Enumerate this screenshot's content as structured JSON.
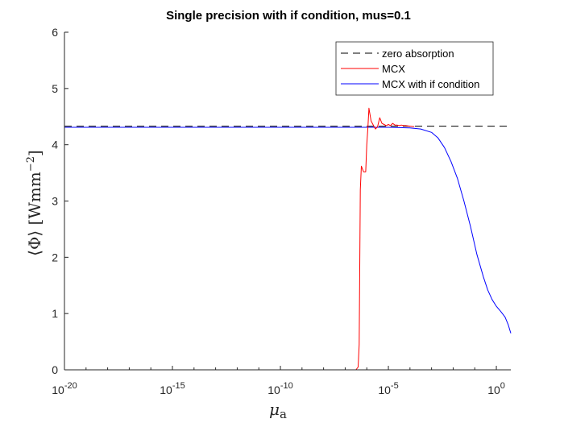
{
  "chart_data": {
    "type": "line",
    "title": "Single precision with if condition, mus=0.1",
    "xlabel": "μ",
    "xlabel_subscript": "a",
    "ylabel": "⟨Φ⟩ [Wmm",
    "ylabel_superscript": "−2",
    "ylabel_suffix": "]",
    "xscale": "log",
    "xlim_log10": [
      -20,
      0.67
    ],
    "ylim": [
      0,
      6
    ],
    "grid": false,
    "legend_position": "top-right",
    "x_ticks": [
      {
        "log10": -20,
        "base": "10",
        "exp": "-20"
      },
      {
        "log10": -15,
        "base": "10",
        "exp": "-15"
      },
      {
        "log10": -10,
        "base": "10",
        "exp": "-10"
      },
      {
        "log10": -5,
        "base": "10",
        "exp": "-5"
      },
      {
        "log10": 0,
        "base": "10",
        "exp": "0"
      }
    ],
    "y_ticks": [
      0,
      1,
      2,
      3,
      4,
      5,
      6
    ],
    "series": [
      {
        "name": "zero absorption",
        "color": "#000000",
        "style": "dashed",
        "x_log10": [
          -20,
          0.67
        ],
        "y": [
          4.33,
          4.33
        ]
      },
      {
        "name": "MCX",
        "color": "#ff0000",
        "style": "solid",
        "x_log10": [
          -20,
          -6.5,
          -6.4,
          -6.35,
          -6.3,
          -6.25,
          -6.15,
          -6.05,
          -6.0,
          -5.95,
          -5.9,
          -5.8,
          -5.7,
          -5.6,
          -5.5,
          -5.4,
          -5.3,
          -5.2,
          -5.1,
          -5.0,
          -4.9,
          -4.8,
          -4.7,
          -4.6,
          -4.5,
          -4.4,
          -4.3,
          -4.2,
          -4.0,
          -3.8
        ],
        "y": [
          0,
          0,
          0.05,
          0.45,
          3.2,
          3.62,
          3.52,
          3.52,
          4.0,
          4.3,
          4.65,
          4.42,
          4.35,
          4.28,
          4.32,
          4.48,
          4.38,
          4.36,
          4.34,
          4.36,
          4.34,
          4.38,
          4.35,
          4.35,
          4.34,
          4.35,
          4.34,
          4.34,
          4.33,
          4.32
        ]
      },
      {
        "name": "MCX with if condition",
        "color": "#0000ff",
        "style": "solid",
        "x_log10": [
          -20,
          -6,
          -5,
          -4,
          -3.5,
          -3,
          -2.7,
          -2.4,
          -2.1,
          -1.8,
          -1.5,
          -1.2,
          -0.9,
          -0.6,
          -0.4,
          -0.2,
          0,
          0.2,
          0.4,
          0.55,
          0.67
        ],
        "y": [
          4.31,
          4.31,
          4.31,
          4.3,
          4.28,
          4.22,
          4.12,
          3.95,
          3.7,
          3.4,
          3.0,
          2.55,
          2.05,
          1.65,
          1.42,
          1.25,
          1.13,
          1.04,
          0.94,
          0.8,
          0.65
        ]
      }
    ]
  }
}
